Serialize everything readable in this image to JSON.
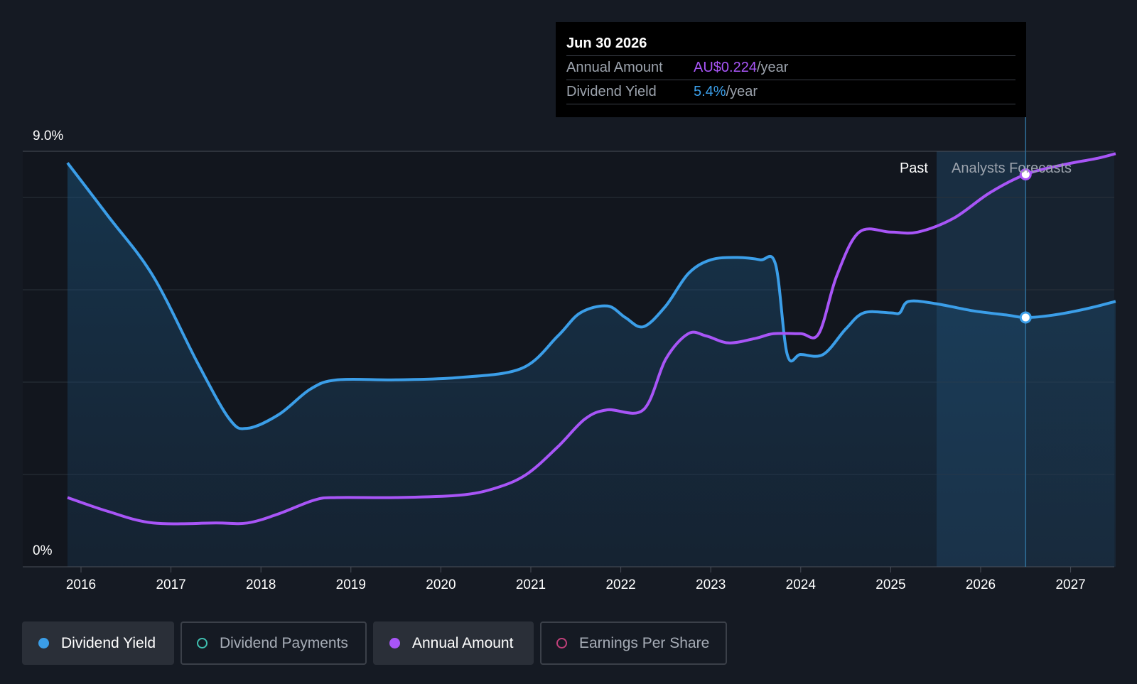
{
  "chart_data": {
    "type": "line",
    "y_axis": {
      "top_label": "9.0%",
      "bottom_label": "0%",
      "ylim": [
        0,
        9.0
      ]
    },
    "x_ticks": [
      "2016",
      "2017",
      "2018",
      "2019",
      "2020",
      "2021",
      "2022",
      "2023",
      "2024",
      "2025",
      "2026",
      "2027"
    ],
    "regions": {
      "past_label": "Past",
      "forecast_label": "Analysts Forecasts"
    },
    "series": [
      {
        "name": "Dividend Yield",
        "color": "#3b9ee8",
        "points": [
          [
            2015.85,
            8.75
          ],
          [
            2016.3,
            7.6
          ],
          [
            2016.8,
            6.3
          ],
          [
            2017.3,
            4.4
          ],
          [
            2017.65,
            3.2
          ],
          [
            2017.85,
            3.0
          ],
          [
            2018.2,
            3.3
          ],
          [
            2018.55,
            3.85
          ],
          [
            2018.85,
            4.05
          ],
          [
            2019.5,
            4.05
          ],
          [
            2020.2,
            4.1
          ],
          [
            2020.9,
            4.3
          ],
          [
            2021.3,
            5.0
          ],
          [
            2021.55,
            5.5
          ],
          [
            2021.85,
            5.65
          ],
          [
            2022.05,
            5.4
          ],
          [
            2022.25,
            5.2
          ],
          [
            2022.5,
            5.65
          ],
          [
            2022.75,
            6.35
          ],
          [
            2023.0,
            6.65
          ],
          [
            2023.3,
            6.7
          ],
          [
            2023.55,
            6.65
          ],
          [
            2023.72,
            6.55
          ],
          [
            2023.85,
            4.6
          ],
          [
            2024.0,
            4.6
          ],
          [
            2024.25,
            4.6
          ],
          [
            2024.5,
            5.15
          ],
          [
            2024.7,
            5.5
          ],
          [
            2025.0,
            5.5
          ],
          [
            2025.1,
            5.5
          ],
          [
            2025.2,
            5.75
          ],
          [
            2025.5,
            5.7
          ],
          [
            2025.9,
            5.55
          ],
          [
            2026.3,
            5.45
          ],
          [
            2026.5,
            5.4
          ],
          [
            2026.8,
            5.45
          ],
          [
            2027.2,
            5.6
          ],
          [
            2027.5,
            5.75
          ]
        ]
      },
      {
        "name": "Annual Amount",
        "color": "#a855f7",
        "points": [
          [
            2015.85,
            1.5
          ],
          [
            2016.3,
            1.2
          ],
          [
            2016.8,
            0.95
          ],
          [
            2017.5,
            0.95
          ],
          [
            2017.85,
            0.95
          ],
          [
            2018.2,
            1.15
          ],
          [
            2018.6,
            1.45
          ],
          [
            2018.85,
            1.5
          ],
          [
            2019.5,
            1.5
          ],
          [
            2020.2,
            1.55
          ],
          [
            2020.6,
            1.7
          ],
          [
            2020.95,
            2.0
          ],
          [
            2021.3,
            2.6
          ],
          [
            2021.6,
            3.2
          ],
          [
            2021.85,
            3.4
          ],
          [
            2022.25,
            3.4
          ],
          [
            2022.5,
            4.5
          ],
          [
            2022.75,
            5.05
          ],
          [
            2022.95,
            5.0
          ],
          [
            2023.2,
            4.85
          ],
          [
            2023.5,
            4.95
          ],
          [
            2023.7,
            5.05
          ],
          [
            2024.0,
            5.05
          ],
          [
            2024.2,
            5.05
          ],
          [
            2024.4,
            6.3
          ],
          [
            2024.65,
            7.25
          ],
          [
            2025.0,
            7.25
          ],
          [
            2025.3,
            7.25
          ],
          [
            2025.7,
            7.55
          ],
          [
            2026.1,
            8.1
          ],
          [
            2026.5,
            8.5
          ],
          [
            2026.9,
            8.7
          ],
          [
            2027.3,
            8.85
          ],
          [
            2027.5,
            8.95
          ]
        ]
      }
    ],
    "highlight": {
      "x": 2026.5,
      "label": "Jun 30 2026"
    }
  },
  "tooltip": {
    "date": "Jun 30 2026",
    "rows": [
      {
        "label": "Annual Amount",
        "value": "AU$0.224",
        "unit": "/year"
      },
      {
        "label": "Dividend Yield",
        "value": "5.4%",
        "unit": "/year"
      }
    ]
  },
  "legend": [
    {
      "label": "Dividend Yield",
      "color": "#3b9ee8",
      "filled": true,
      "active": true
    },
    {
      "label": "Dividend Payments",
      "color": "#3fbfb0",
      "filled": false,
      "active": false
    },
    {
      "label": "Annual Amount",
      "color": "#a855f7",
      "filled": true,
      "active": true
    },
    {
      "label": "Earnings Per Share",
      "color": "#c0407a",
      "filled": false,
      "active": false
    }
  ]
}
